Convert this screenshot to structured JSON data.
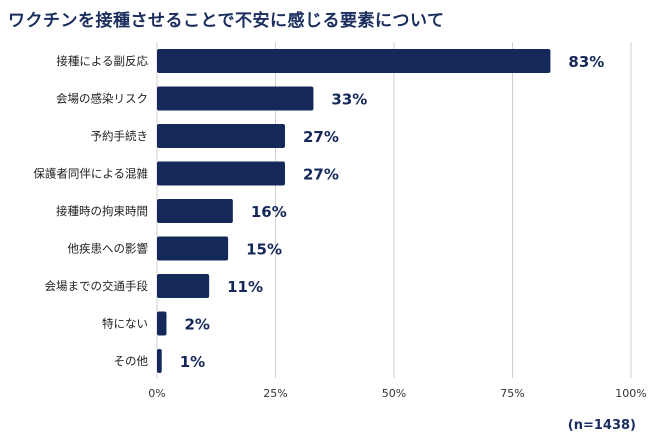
{
  "chart_data": {
    "type": "bar",
    "orientation": "horizontal",
    "title": "ワクチンを接種させることで不安に感じる要素について",
    "categories": [
      "接種による副反応",
      "会場の感染リスク",
      "予約手続き",
      "保護者同伴による混雑",
      "接種時の拘束時間",
      "他疾患への影響",
      "会場までの交通手段",
      "特にない",
      "その他"
    ],
    "values": [
      83,
      33,
      27,
      27,
      16,
      15,
      11,
      2,
      1
    ],
    "value_labels": [
      "83%",
      "33%",
      "27%",
      "27%",
      "16%",
      "15%",
      "11%",
      "2%",
      "1%"
    ],
    "xlim": [
      0,
      100
    ],
    "x_ticks": [
      0,
      25,
      50,
      75,
      100
    ],
    "x_tick_labels": [
      "0%",
      "25%",
      "50%",
      "75%",
      "100%"
    ],
    "grid": true,
    "bar_color": "#14285a",
    "grid_color": "#cfcfcf",
    "note": "(n=1438)"
  }
}
